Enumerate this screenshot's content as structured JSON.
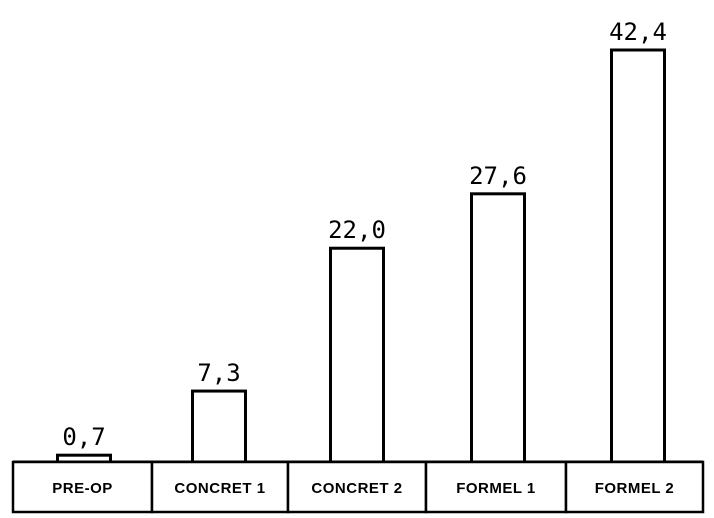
{
  "chart_data": {
    "type": "bar",
    "categories": [
      "PRE-OP",
      "CONCRET 1",
      "CONCRET 2",
      "FORMEL 1",
      "FORMEL 2"
    ],
    "values": [
      0.7,
      7.3,
      22.0,
      27.6,
      42.4
    ],
    "value_labels": [
      "0,7",
      "7,3",
      "22,0",
      "27,6",
      "42,4"
    ],
    "title": "",
    "xlabel": "",
    "ylabel": "",
    "ylim": [
      0,
      42.4
    ],
    "grid": false,
    "colors": {
      "bar_fill": "#ffffff",
      "bar_stroke": "#000000"
    }
  }
}
